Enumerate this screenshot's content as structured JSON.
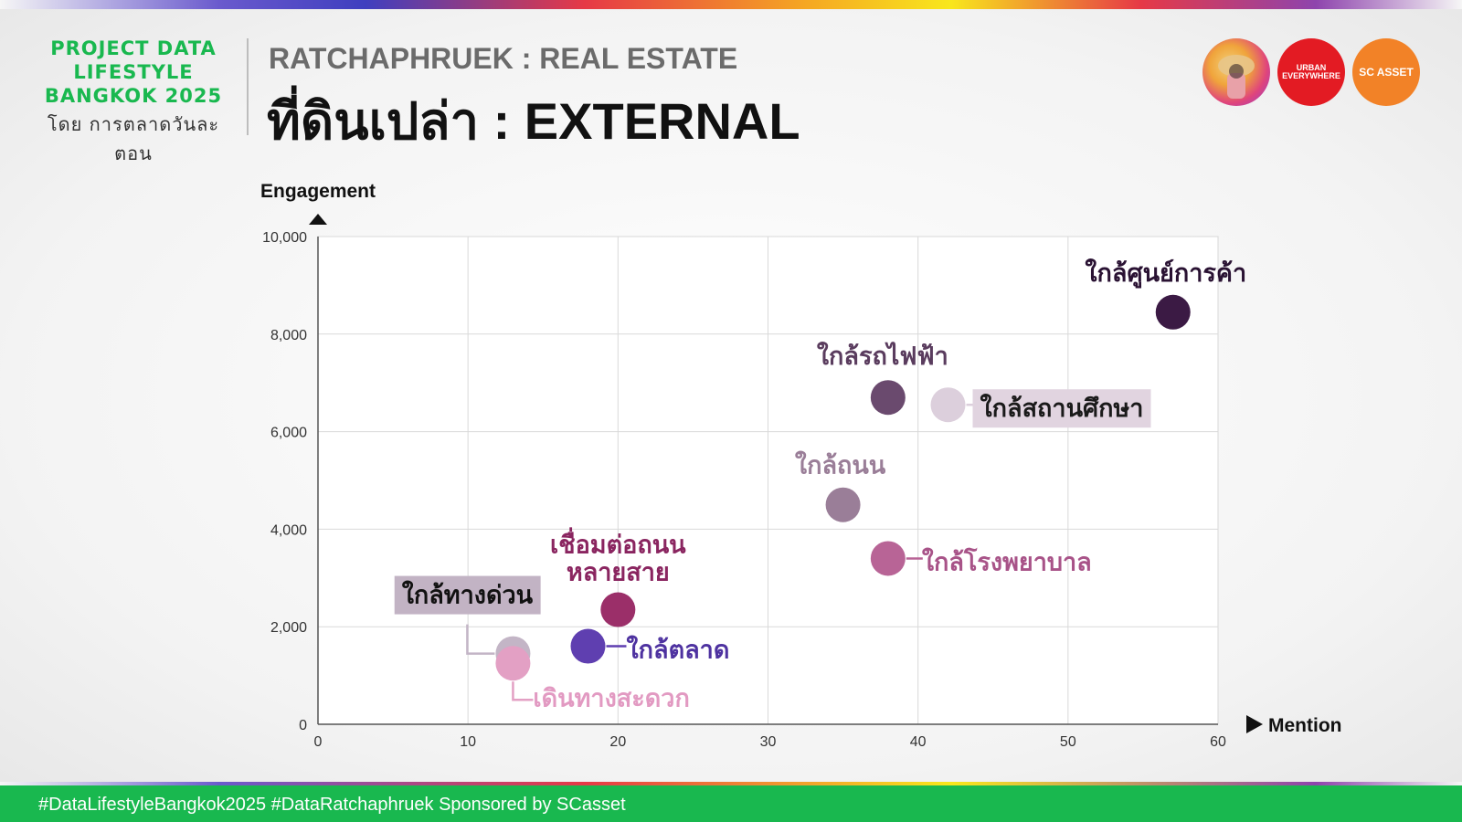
{
  "brand": {
    "line1": "PROJECT DATA",
    "line2": "LIFESTYLE",
    "line3": "BANGKOK 2025",
    "sub": "โดย การตลาดวันละตอน"
  },
  "header": {
    "subtitle": "RATCHAPHRUEK : REAL ESTATE",
    "title": "ที่ดินเปล่า : EXTERNAL"
  },
  "logos": [
    {
      "name": "project-mascot-logo",
      "text": ""
    },
    {
      "name": "urban-everywhere-logo",
      "text": "URBAN EVERYWHERE"
    },
    {
      "name": "sc-asset-logo",
      "text": "SC ASSET"
    }
  ],
  "footer": {
    "text": "#DataLifestyleBangkok2025 #DataRatchaphruek Sponsored by SCasset"
  },
  "colors": {
    "brand_green": "#19b84f",
    "footer_green": "#19b84f"
  },
  "chart_data": {
    "type": "scatter",
    "ylabel": "Engagement",
    "xlabel": "Mention",
    "xlim": [
      0,
      60
    ],
    "ylim": [
      0,
      10000
    ],
    "xticks": [
      "0",
      "10",
      "20",
      "30",
      "40",
      "50",
      "60"
    ],
    "yticks": [
      "0",
      "2,000",
      "4,000",
      "6,000",
      "8,000",
      "10,000"
    ],
    "grid": true,
    "points": [
      {
        "label": "ใกล้ศูนย์การค้า",
        "x": 57,
        "y": 8450,
        "color": "#3b1a44",
        "label_color": "#2a1233",
        "label_bg": ""
      },
      {
        "label": "ใกล้รถไฟฟ้า",
        "x": 38,
        "y": 6700,
        "color": "#6a4a6e",
        "label_color": "#5a3c5e",
        "label_bg": ""
      },
      {
        "label": "ใกล้สถานศึกษา",
        "x": 42,
        "y": 6550,
        "color": "#dccfdc",
        "label_color": "#1a1a1a",
        "label_bg": "#e1d4e0"
      },
      {
        "label": "ใกล้ถนน",
        "x": 35,
        "y": 4500,
        "color": "#9a7e98",
        "label_color": "#9a7e98",
        "label_bg": ""
      },
      {
        "label": "ใกล้โรงพยาบาล",
        "x": 38,
        "y": 3400,
        "color": "#b86496",
        "label_color": "#a85388",
        "label_bg": ""
      },
      {
        "label": "เชื่อมต่อถนนหลายสาย",
        "x": 20,
        "y": 2350,
        "color": "#9b2f69",
        "label_color": "#8a2560",
        "label_bg": ""
      },
      {
        "label": "ใกล้ตลาด",
        "x": 18,
        "y": 1600,
        "color": "#5f3fb0",
        "label_color": "#4e32a0",
        "label_bg": ""
      },
      {
        "label": "ใกล้ทางด่วน",
        "x": 13,
        "y": 1450,
        "color": "#c3b5c6",
        "label_color": "#111111",
        "label_bg": "#c2b3c4"
      },
      {
        "label": "เดินทางสะดวก",
        "x": 13,
        "y": 1250,
        "color": "#e3a0c4",
        "label_color": "#e29ac2",
        "label_bg": ""
      }
    ]
  }
}
